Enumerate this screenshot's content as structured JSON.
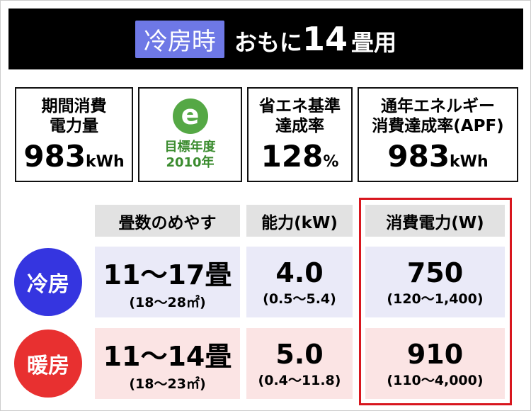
{
  "header": {
    "badge": "冷房時",
    "text1": "おもに",
    "number": "14",
    "text2": "畳用"
  },
  "specs": [
    {
      "label": [
        "期間消費",
        "電力量"
      ],
      "value": "983",
      "unit": "kWh"
    },
    {
      "icon": "e",
      "label": [
        "目標年度",
        "2010年"
      ]
    },
    {
      "label": [
        "省エネ基準",
        "達成率"
      ],
      "value": "128",
      "unit": "%"
    },
    {
      "label": [
        "通年エネルギー",
        "消費達成率(APF)"
      ],
      "value": "983",
      "unit": "kWh"
    }
  ],
  "table": {
    "columns": [
      "畳数のめやす",
      "能力(kW)",
      "消費電力(W)"
    ],
    "rows": [
      {
        "mode": "冷房",
        "cells": [
          [
            "11〜17畳",
            "(18〜28㎡)"
          ],
          [
            "4.0",
            "(0.5〜5.4)"
          ],
          [
            "750",
            "(120〜1,400)"
          ]
        ]
      },
      {
        "mode": "暖房",
        "cells": [
          [
            "11〜14畳",
            "(18〜23㎡)"
          ],
          [
            "5.0",
            "(0.4〜11.8)"
          ],
          [
            "910",
            "(110〜4,000)"
          ]
        ]
      }
    ]
  }
}
